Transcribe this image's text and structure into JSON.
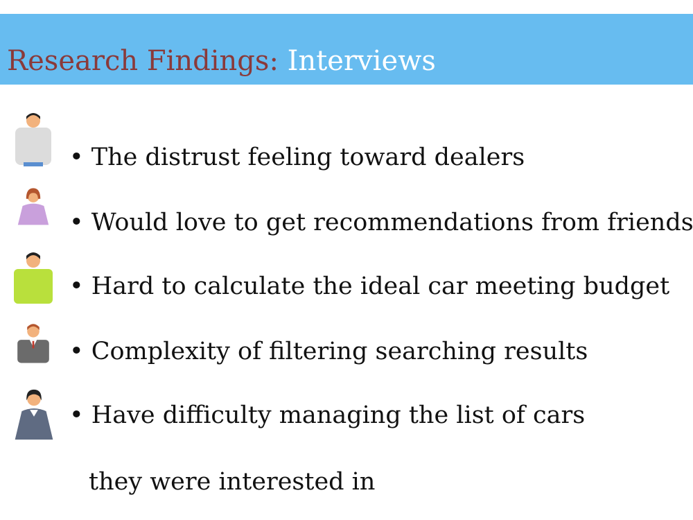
{
  "header": {
    "title_part1": "Research Findings:",
    "title_part2": "Interviews"
  },
  "findings": [
    {
      "text": "• The distrust feeling toward dealers",
      "icon": "man-casual-icon"
    },
    {
      "text": "• Would love to get recommendations from friends",
      "icon": "woman-purple-icon"
    },
    {
      "text": "• Hard to calculate the ideal car meeting budget",
      "icon": "man-green-shirt-icon"
    },
    {
      "text": "• Complexity of filtering searching results",
      "icon": "businessman-icon"
    },
    {
      "text": "• Have difficulty managing the list of cars",
      "icon": "businesswoman-icon"
    }
  ],
  "continuation": "they were interested in",
  "colors": {
    "banner": "#67bcf0",
    "title_accent": "#8a3a3a",
    "title_light": "#ffffff"
  }
}
